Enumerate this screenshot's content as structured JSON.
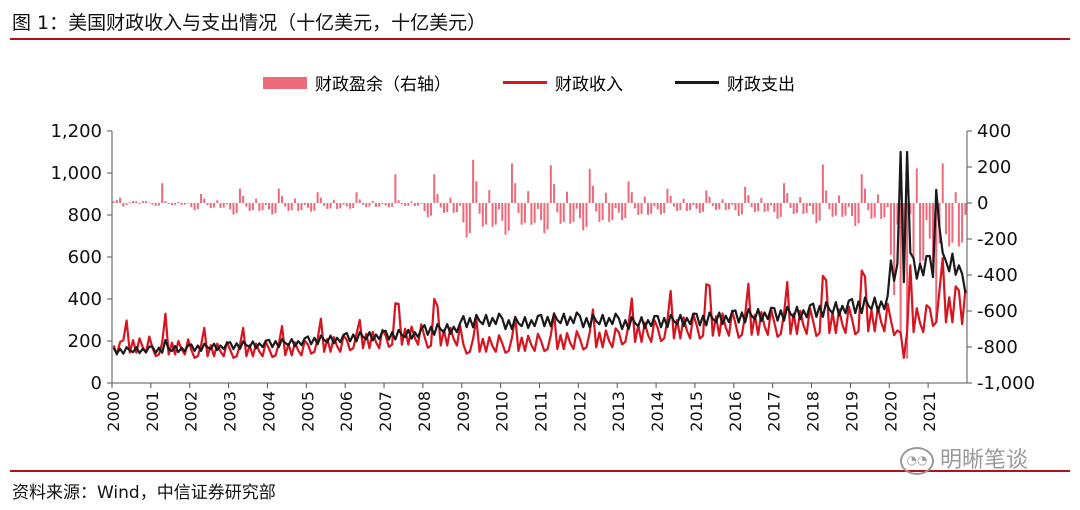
{
  "title": "图 1：美国财政收入与支出情况（十亿美元，十亿美元）",
  "source": "资料来源：Wind，中信证券研究部",
  "watermark": "明晰笔谈",
  "colors": {
    "surplus": "#ee6a7a",
    "revenue": "#d7141f",
    "spending": "#1a1a1a",
    "rule": "#b0121b"
  },
  "chart_data": {
    "type": "bar+line",
    "legend": [
      "财政盈余（右轴）",
      "财政收入",
      "财政支出"
    ],
    "legend_position": "top-center",
    "x_ticks": [
      "2000",
      "2001",
      "2002",
      "2003",
      "2004",
      "2005",
      "2006",
      "2007",
      "2008",
      "2009",
      "2010",
      "2011",
      "2012",
      "2013",
      "2014",
      "2015",
      "2016",
      "2017",
      "2018",
      "2019",
      "2020",
      "2021"
    ],
    "x_range": [
      2000,
      2022
    ],
    "y_left": {
      "ticks": [
        0,
        200,
        400,
        600,
        800,
        1000,
        1200
      ],
      "tick_labels": [
        "0",
        "200",
        "400",
        "600",
        "800",
        "1,000",
        "1,200"
      ],
      "range": [
        0,
        1200
      ]
    },
    "y_right": {
      "ticks": [
        -1000,
        -800,
        -600,
        -400,
        -200,
        0,
        200,
        400
      ],
      "tick_labels": [
        "-1,000",
        "-800",
        "-600",
        "-400",
        "-200",
        "0",
        "200",
        "400"
      ],
      "range": [
        -1000,
        400
      ]
    },
    "grid": false,
    "series": [
      {
        "name": "财政收入",
        "axis": "left",
        "type": "line",
        "annual_base": [
          170,
          160,
          150,
          150,
          155,
          175,
          195,
          215,
          210,
          175,
          180,
          190,
          200,
          230,
          250,
          265,
          270,
          275,
          280,
          290,
          285,
          340
        ],
        "monthly_pattern": [
          1.05,
          0.8,
          0.85,
          1.2,
          1.75,
          0.85,
          1.2,
          0.85,
          1.25,
          1.0,
          0.85,
          1.3
        ],
        "events": [
          {
            "x": "2000-03",
            "value": 195
          },
          {
            "x": "2001-05",
            "value": 330
          },
          {
            "x": "2006-05",
            "value": 300
          },
          {
            "x": "2007-04",
            "value": 380
          },
          {
            "x": "2008-04",
            "value": 400
          },
          {
            "x": "2015-04",
            "value": 470
          },
          {
            "x": "2018-04",
            "value": 510
          },
          {
            "x": "2019-04",
            "value": 535
          },
          {
            "x": "2020-03",
            "value": 250
          },
          {
            "x": "2020-04",
            "value": 240
          },
          {
            "x": "2020-05",
            "value": 120
          },
          {
            "x": "2020-07",
            "value": 560
          },
          {
            "x": "2021-04",
            "value": 440
          },
          {
            "x": "2021-09",
            "value": 460
          },
          {
            "x": "2021-10",
            "value": 440
          },
          {
            "x": "2021-11",
            "value": 280
          }
        ]
      },
      {
        "name": "财政支出",
        "axis": "left",
        "type": "line",
        "annual_base": [
          155,
          160,
          170,
          180,
          190,
          205,
          220,
          230,
          255,
          295,
          285,
          300,
          295,
          285,
          295,
          305,
          320,
          330,
          350,
          370,
          540,
          560
        ],
        "monthly_pattern": [
          1.08,
          0.9,
          1.05,
          0.9,
          1.1,
          1.0,
          0.95,
          1.1,
          0.92,
          1.05,
          0.95,
          1.12
        ],
        "events": [
          {
            "x": "2001-05",
            "value": 205
          },
          {
            "x": "2020-04",
            "value": 1100
          },
          {
            "x": "2020-05",
            "value": 480
          },
          {
            "x": "2020-06",
            "value": 1100
          },
          {
            "x": "2020-07",
            "value": 620
          },
          {
            "x": "2021-03",
            "value": 920
          },
          {
            "x": "2021-04",
            "value": 740
          },
          {
            "x": "2021-05",
            "value": 620
          },
          {
            "x": "2021-06",
            "value": 580
          },
          {
            "x": "2021-10",
            "value": 560
          },
          {
            "x": "2021-11",
            "value": 520
          },
          {
            "x": "2021-12",
            "value": 430
          }
        ]
      },
      {
        "name": "财政盈余（右轴）",
        "axis": "right",
        "type": "bar",
        "annual_base": [
          10,
          -10,
          -25,
          -40,
          -40,
          -30,
          -20,
          -15,
          -50,
          -120,
          -110,
          -105,
          -95,
          -60,
          -40,
          -35,
          -45,
          -55,
          -70,
          -80,
          -320,
          -220
        ],
        "monthly_pattern": [
          0.9,
          1.6,
          1.4,
          -2.0,
          -1.0,
          0.5,
          1.1,
          1.0,
          -0.6,
          1.1,
          1.0,
          0.3
        ],
        "events": [
          {
            "x": "2000-03",
            "value": 30
          },
          {
            "x": "2001-04",
            "value": 110
          },
          {
            "x": "2006-04",
            "value": 60
          },
          {
            "x": "2007-04",
            "value": 160
          },
          {
            "x": "2008-04",
            "value": 160
          },
          {
            "x": "2018-04",
            "value": 214
          },
          {
            "x": "2019-04",
            "value": 160
          },
          {
            "x": "2020-03",
            "value": -120
          },
          {
            "x": "2020-04",
            "value": -738
          },
          {
            "x": "2020-05",
            "value": -399
          },
          {
            "x": "2020-06",
            "value": -864
          },
          {
            "x": "2020-07",
            "value": -63
          },
          {
            "x": "2021-03",
            "value": -660
          },
          {
            "x": "2021-04",
            "value": -225
          },
          {
            "x": "2021-06",
            "value": -174
          },
          {
            "x": "2021-09",
            "value": 60
          }
        ]
      }
    ]
  }
}
